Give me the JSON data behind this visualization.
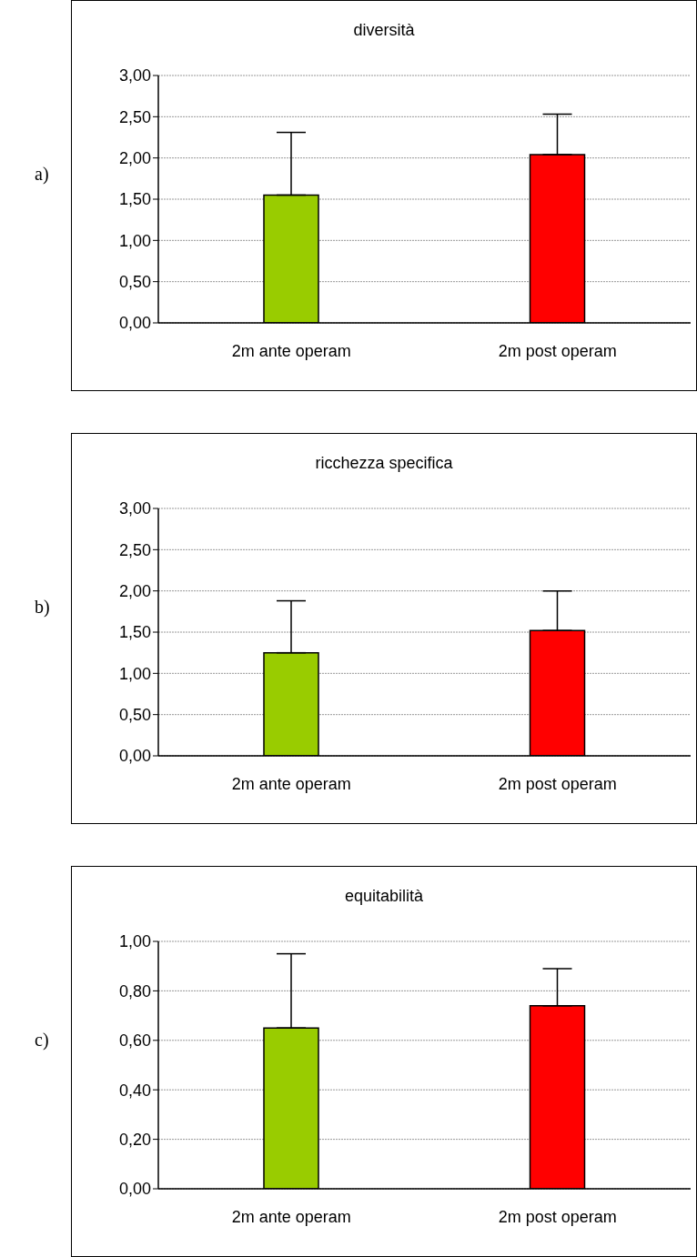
{
  "chart_data": [
    {
      "type": "bar",
      "title": "diversità",
      "annotations": [
        "a)"
      ],
      "categories": [
        "2m ante operam",
        "2m post operam"
      ],
      "values": [
        1.55,
        2.04
      ],
      "colors": [
        "#99cc00",
        "#ff0000"
      ],
      "errors": [
        [
          1.55,
          2.31
        ],
        [
          2.04,
          2.53
        ]
      ],
      "ylim": [
        0,
        3
      ],
      "yticks": [
        {
          "value": 0,
          "label": "0,00"
        },
        {
          "value": 0.5,
          "label": "0,50"
        },
        {
          "value": 1,
          "label": "1,00"
        },
        {
          "value": 1.5,
          "label": "1,50"
        },
        {
          "value": 2,
          "label": "2,00"
        },
        {
          "value": 2.5,
          "label": "2,50"
        },
        {
          "value": 3,
          "label": "3,00"
        }
      ],
      "grid": "y"
    },
    {
      "type": "bar",
      "title": "ricchezza specifica",
      "annotations": [
        "b)"
      ],
      "categories": [
        "2m ante operam",
        "2m post operam"
      ],
      "values": [
        1.25,
        1.52
      ],
      "colors": [
        "#99cc00",
        "#ff0000"
      ],
      "errors": [
        [
          1.25,
          1.88
        ],
        [
          1.52,
          2.0
        ]
      ],
      "ylim": [
        0,
        3
      ],
      "yticks": [
        {
          "value": 0,
          "label": "0,00"
        },
        {
          "value": 0.5,
          "label": "0,50"
        },
        {
          "value": 1,
          "label": "1,00"
        },
        {
          "value": 1.5,
          "label": "1,50"
        },
        {
          "value": 2,
          "label": "2,00"
        },
        {
          "value": 2.5,
          "label": "2,50"
        },
        {
          "value": 3,
          "label": "3,00"
        }
      ],
      "grid": "y"
    },
    {
      "type": "bar",
      "title": "equitabilità",
      "annotations": [
        "c)"
      ],
      "categories": [
        "2m ante operam",
        "2m post operam"
      ],
      "values": [
        0.65,
        0.74
      ],
      "colors": [
        "#99cc00",
        "#ff0000"
      ],
      "errors": [
        [
          0.65,
          0.95
        ],
        [
          0.74,
          0.89
        ]
      ],
      "ylim": [
        0,
        1
      ],
      "yticks": [
        {
          "value": 0,
          "label": "0,00"
        },
        {
          "value": 0.2,
          "label": "0,20"
        },
        {
          "value": 0.4,
          "label": "0,40"
        },
        {
          "value": 0.6,
          "label": "0,60"
        },
        {
          "value": 0.8,
          "label": "0,80"
        },
        {
          "value": 1,
          "label": "1,00"
        }
      ],
      "grid": "y"
    }
  ]
}
